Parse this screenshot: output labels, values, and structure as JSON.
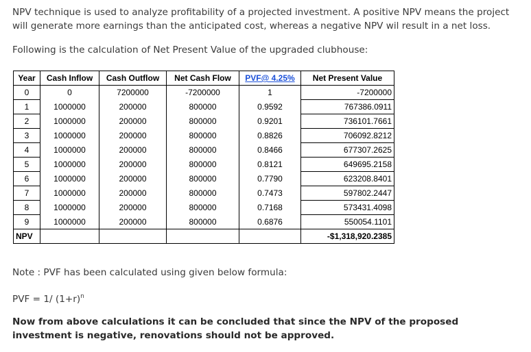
{
  "intro": "NPV technique is used to analyze profitability of a projected investment. A positive NPV means the project will generate more earnings than the anticipated cost, whereas a negative NPV wil result in a net loss.",
  "following": "Following is the calculation of Net Present Value of the upgraded clubhouse:",
  "table": {
    "headers": [
      "Year",
      "Cash Inflow",
      "Cash Outflow",
      "Net Cash Flow",
      "PVF@ 4.25%",
      "Net Present Value"
    ],
    "rows": [
      [
        "0",
        "0",
        "7200000",
        "-7200000",
        "1",
        "-7200000"
      ],
      [
        "1",
        "1000000",
        "200000",
        "800000",
        "0.9592",
        "767386.0911"
      ],
      [
        "2",
        "1000000",
        "200000",
        "800000",
        "0.9201",
        "736101.7661"
      ],
      [
        "3",
        "1000000",
        "200000",
        "800000",
        "0.8826",
        "706092.8212"
      ],
      [
        "4",
        "1000000",
        "200000",
        "800000",
        "0.8466",
        "677307.2625"
      ],
      [
        "5",
        "1000000",
        "200000",
        "800000",
        "0.8121",
        "649695.2158"
      ],
      [
        "6",
        "1000000",
        "200000",
        "800000",
        "0.7790",
        "623208.8401"
      ],
      [
        "7",
        "1000000",
        "200000",
        "800000",
        "0.7473",
        "597802.2447"
      ],
      [
        "8",
        "1000000",
        "200000",
        "800000",
        "0.7168",
        "573431.4098"
      ],
      [
        "9",
        "1000000",
        "200000",
        "800000",
        "0.6876",
        "550054.1101"
      ]
    ],
    "total_label": "NPV",
    "total_value": "-$1,318,920.2385"
  },
  "note": "Note : PVF has been calculated using given below formula:",
  "formula": {
    "text": "PVF = 1/ (1+r)",
    "exponent": "n"
  },
  "conclusion": "Now from above calculations it can be concluded that since the NPV of the proposed investment is negative, renovations should not be approved.",
  "colors": {
    "pvf_header_link": "#1a4fd8",
    "body_text": "#3a3a3a"
  }
}
